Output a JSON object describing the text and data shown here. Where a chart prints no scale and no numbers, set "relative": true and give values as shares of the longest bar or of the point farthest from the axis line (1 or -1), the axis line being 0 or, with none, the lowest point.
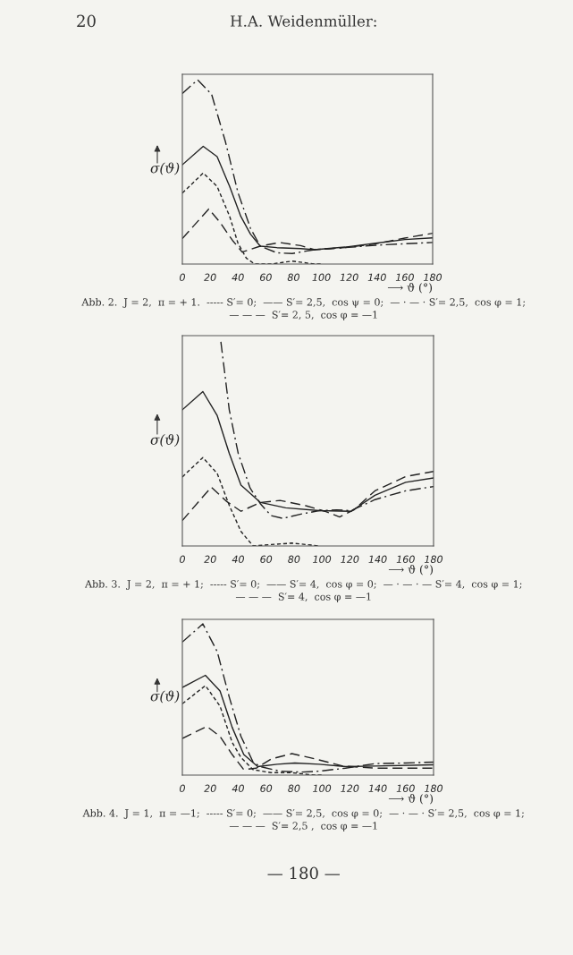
{
  "chart_data": [
    {
      "type": "line",
      "relative": true,
      "xlabel": "⟶ ϑ (°)",
      "ylabel": "σ(ϑ)",
      "xlim": [
        0,
        180
      ],
      "xticks": [
        0,
        20,
        40,
        60,
        80,
        100,
        120,
        140,
        160,
        180
      ],
      "annotations": [
        "20",
        "H.A. Weidenmüller:",
        "Abb. 2.  J = 2,  π = + 1.  ----- S′= 0;  —— S′= 2,5,  cos ψ = 0;  — · — · S′= 2,5,  cos φ = 1;\n— — —  S′= 2, 5,  cos φ = —1"
      ],
      "series": [
        {
          "color": "#222222",
          "line_style": "dashed",
          "x": [
            0,
            15,
            25,
            34,
            40,
            46,
            52,
            64,
            79,
            95,
            100
          ],
          "values": [
            0.385,
            0.494,
            0.421,
            0.259,
            0.113,
            0.032,
            0,
            0,
            0.016,
            0,
            0
          ]
        },
        {
          "color": "#222222",
          "line_style": "solid",
          "x": [
            0,
            15,
            25,
            34,
            42,
            49,
            56,
            68,
            85,
            95,
            117,
            139,
            160,
            180
          ],
          "values": [
            0.539,
            0.639,
            0.583,
            0.421,
            0.259,
            0.162,
            0.097,
            0.089,
            0.084,
            0.078,
            0.092,
            0.113,
            0.133,
            0.142
          ]
        },
        {
          "color": "#222222",
          "line_style": "dashdot",
          "x": [
            0,
            11,
            21,
            31,
            40,
            49,
            56,
            68,
            79,
            95,
            117,
            139,
            160,
            180
          ],
          "values": [
            0.926,
            1.0,
            0.922,
            0.663,
            0.388,
            0.194,
            0.097,
            0.061,
            0.057,
            0.078,
            0.089,
            0.102,
            0.11,
            0.117
          ]
        },
        {
          "color": "#222222",
          "line_style": "longdash",
          "x": [
            0,
            19,
            27,
            36,
            43,
            56,
            70,
            85,
            95,
            117,
            139,
            160,
            180
          ],
          "values": [
            0.138,
            0.299,
            0.227,
            0.129,
            0.065,
            0.097,
            0.117,
            0.1,
            0.078,
            0.089,
            0.11,
            0.141,
            0.167
          ]
        }
      ]
    },
    {
      "type": "line",
      "relative": true,
      "xlabel": "⟶ ϑ (°)",
      "ylabel": "σ(ϑ)",
      "xlim": [
        0,
        180
      ],
      "xticks": [
        0,
        20,
        40,
        60,
        80,
        100,
        120,
        140,
        160,
        180
      ],
      "annotations": [
        "Abb. 3.  J = 2,  π = + 1;  ----- S′= 0;  —— S′= 4,  cos φ = 0;  — · — · — S′= 4,  cos φ = 1;\n— — —  S′= 4,  cos φ = —1"
      ],
      "series": [
        {
          "color": "#222222",
          "line_style": "dashed",
          "x": [
            0,
            14.7,
            25,
            33.6,
            42,
            50.7,
            63.5,
            78.5,
            94.5,
            98
          ],
          "values": [
            0.338,
            0.433,
            0.355,
            0.199,
            0.071,
            0,
            0.007,
            0.014,
            0.003,
            0
          ]
        },
        {
          "color": "#222222",
          "line_style": "solid",
          "x": [
            0,
            14.7,
            25,
            33.6,
            42,
            56,
            74,
            98,
            121,
            138,
            160,
            180
          ],
          "values": [
            0.667,
            0.756,
            0.638,
            0.454,
            0.298,
            0.213,
            0.187,
            0.173,
            0.17,
            0.248,
            0.312,
            0.333
          ]
        },
        {
          "color": "#222222",
          "line_style": "dashdot",
          "x": [
            27.6,
            33.6,
            40,
            48.5,
            56,
            63.5,
            72,
            85,
            98,
            110.5,
            121,
            138,
            160,
            180
          ],
          "values": [
            1.0,
            0.667,
            0.454,
            0.284,
            0.206,
            0.149,
            0.135,
            0.156,
            0.173,
            0.177,
            0.173,
            0.227,
            0.27,
            0.291
          ]
        },
        {
          "color": "#222222",
          "line_style": "longdash",
          "x": [
            0,
            20.7,
            31.4,
            42,
            56,
            70,
            89,
            102,
            112.7,
            123,
            138,
            160,
            180
          ],
          "values": [
            0.125,
            0.288,
            0.22,
            0.17,
            0.213,
            0.223,
            0.196,
            0.17,
            0.142,
            0.177,
            0.27,
            0.34,
            0.365
          ]
        }
      ]
    },
    {
      "type": "line",
      "relative": true,
      "xlabel": "⟶ ϑ (°)",
      "ylabel": "σ(ϑ)",
      "xlim": [
        0,
        180
      ],
      "xticks": [
        0,
        20,
        40,
        60,
        80,
        100,
        120,
        140,
        160,
        180
      ],
      "annotations": [
        "Abb. 4.  J = 1,  π = —1;  ----- S′= 0;  —— S′= 2,5,  cos φ = 0;  — · — · S′= 2,5,  cos φ = 1;\n— — —  S′= 2,5 ,  cos φ = —1",
        "— 180 —"
      ],
      "series": [
        {
          "color": "#222222",
          "line_style": "dashed",
          "x": [
            0,
            16.5,
            27,
            35.7,
            42,
            50.7,
            63.5,
            78.5,
            94.5,
            100
          ],
          "values": [
            0.472,
            0.592,
            0.456,
            0.216,
            0.116,
            0.036,
            0.016,
            0.016,
            0,
            0
          ]
        },
        {
          "color": "#222222",
          "line_style": "solid",
          "x": [
            0,
            16.5,
            27,
            35.7,
            44,
            54,
            68,
            80.6,
            98,
            117,
            138,
            180
          ],
          "values": [
            0.58,
            0.66,
            0.556,
            0.316,
            0.136,
            0.056,
            0.072,
            0.08,
            0.072,
            0.056,
            0.06,
            0.068
          ]
        },
        {
          "color": "#222222",
          "line_style": "dashdot",
          "x": [
            0,
            14.7,
            25,
            33.6,
            42,
            50.7,
            56,
            70,
            85,
            98,
            117,
            138,
            160,
            180
          ],
          "values": [
            0.88,
            1.0,
            0.816,
            0.516,
            0.256,
            0.086,
            0.056,
            0.026,
            0.02,
            0.026,
            0.046,
            0.076,
            0.08,
            0.086
          ]
        },
        {
          "color": "#222222",
          "line_style": "longdash",
          "x": [
            0,
            17.5,
            27,
            35.7,
            44,
            53,
            63.5,
            78.5,
            95.7,
            115,
            138,
            180
          ],
          "values": [
            0.242,
            0.322,
            0.256,
            0.136,
            0.036,
            0.046,
            0.106,
            0.142,
            0.106,
            0.06,
            0.046,
            0.046
          ]
        }
      ]
    }
  ]
}
